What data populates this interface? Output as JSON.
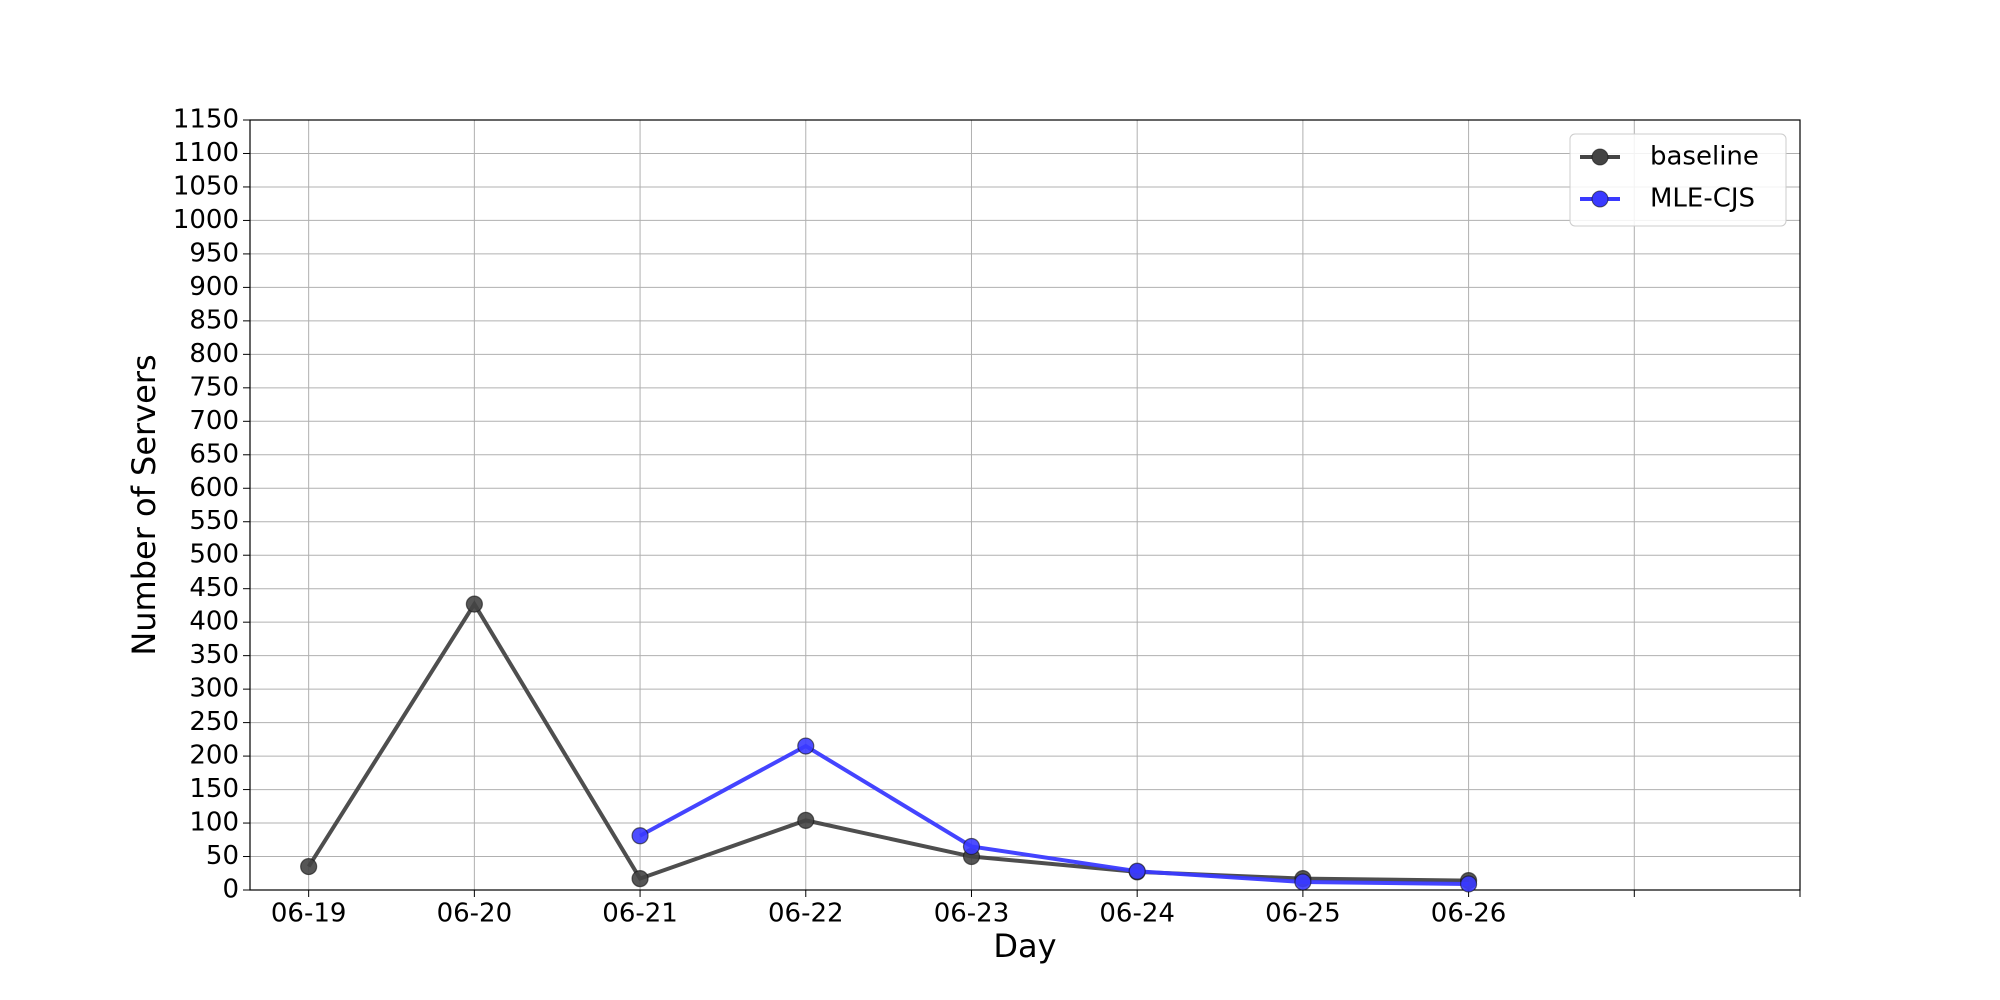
{
  "chart_data": {
    "type": "line",
    "x_label": "Day",
    "y_label": "Number of Servers",
    "categories": [
      "06-19",
      "06-20",
      "06-21",
      "06-22",
      "06-23",
      "06-24",
      "06-25",
      "06-26",
      null,
      null
    ],
    "series": [
      {
        "name": "baseline",
        "color": "#444444",
        "values": [
          35,
          427,
          17,
          104,
          50,
          27,
          17,
          14,
          null,
          null
        ]
      },
      {
        "name": "MLE-CJS",
        "color": "#3a3aff",
        "values": [
          null,
          null,
          81,
          215,
          65,
          28,
          12,
          9,
          null,
          null
        ]
      }
    ],
    "ylim": [
      0,
      1150
    ],
    "yticks": [
      0,
      50,
      100,
      150,
      200,
      250,
      300,
      350,
      400,
      450,
      500,
      550,
      600,
      650,
      700,
      750,
      800,
      850,
      900,
      950,
      1000,
      1050,
      1100,
      1150
    ],
    "grid": true,
    "legend": "upper right"
  }
}
